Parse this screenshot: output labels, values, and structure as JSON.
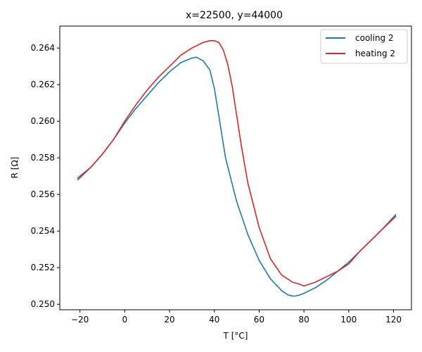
{
  "chart_data": {
    "type": "line",
    "title": "x=22500, y=44000",
    "xlabel": "T [°C]",
    "ylabel": "R [Ω]",
    "xlim": [
      -29,
      128
    ],
    "ylim": [
      0.2497,
      0.2652
    ],
    "xticks": [
      -20,
      0,
      20,
      40,
      60,
      80,
      100,
      120
    ],
    "yticks": [
      0.25,
      0.252,
      0.254,
      0.256,
      0.258,
      0.26,
      0.262,
      0.264
    ],
    "xtick_labels": [
      "−20",
      "0",
      "20",
      "40",
      "60",
      "80",
      "100",
      "120"
    ],
    "ytick_labels": [
      "0.250",
      "0.252",
      "0.254",
      "0.256",
      "0.258",
      "0.260",
      "0.262",
      "0.264"
    ],
    "grid": false,
    "legend_position": "top-right",
    "series": [
      {
        "name": "cooling 2",
        "color": "#1f77b4",
        "x": [
          -21,
          -15,
          -10,
          -5,
          0,
          5,
          10,
          15,
          20,
          25,
          30,
          32,
          35,
          38,
          40,
          42,
          45,
          50,
          55,
          60,
          65,
          70,
          73,
          75,
          76,
          78,
          80,
          85,
          90,
          95,
          100,
          105,
          110,
          115,
          121
        ],
        "y": [
          0.2569,
          0.2575,
          0.2582,
          0.259,
          0.2599,
          0.2607,
          0.2614,
          0.2621,
          0.2627,
          0.2632,
          0.26345,
          0.2635,
          0.2633,
          0.2628,
          0.2618,
          0.2603,
          0.258,
          0.2556,
          0.2538,
          0.2524,
          0.2514,
          0.25075,
          0.2505,
          0.25045,
          0.25045,
          0.2505,
          0.2506,
          0.2509,
          0.2513,
          0.2518,
          0.2523,
          0.2529,
          0.2535,
          0.2541,
          0.2549
        ]
      },
      {
        "name": "heating 2",
        "color": "#d62728",
        "x": [
          -21,
          -15,
          -10,
          -5,
          0,
          5,
          10,
          15,
          20,
          25,
          30,
          35,
          38,
          40,
          42,
          44,
          46,
          48,
          50,
          52,
          55,
          60,
          65,
          70,
          75,
          78,
          80,
          85,
          90,
          95,
          100,
          105,
          110,
          115,
          121
        ],
        "y": [
          0.2568,
          0.2575,
          0.2582,
          0.259,
          0.26,
          0.2609,
          0.2617,
          0.2624,
          0.263,
          0.2636,
          0.264,
          0.2643,
          0.2644,
          0.2644,
          0.2643,
          0.2639,
          0.2631,
          0.2619,
          0.2603,
          0.2587,
          0.2566,
          0.2542,
          0.2525,
          0.2516,
          0.2512,
          0.2511,
          0.251,
          0.2512,
          0.2515,
          0.2518,
          0.2522,
          0.2529,
          0.2535,
          0.2541,
          0.2548
        ]
      }
    ]
  }
}
